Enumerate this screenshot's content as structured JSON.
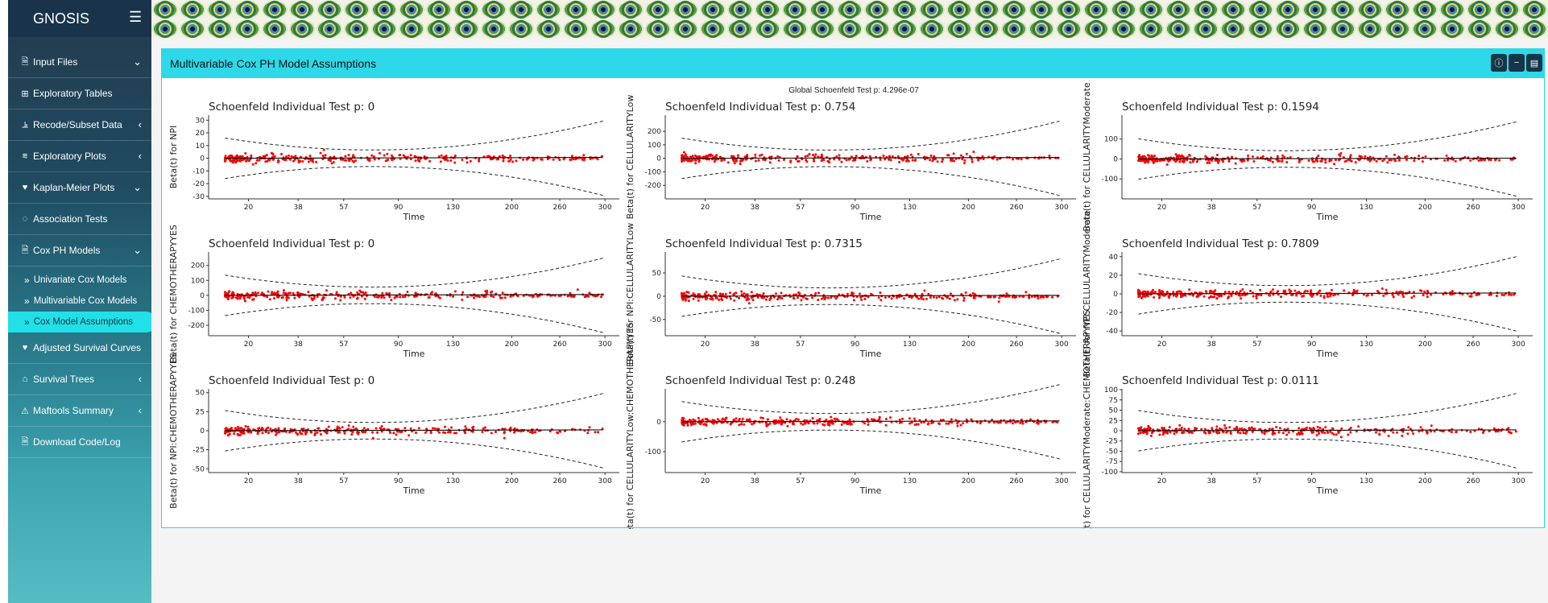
{
  "app": {
    "title": "GNOSIS",
    "menu_icon": "hamburger-icon"
  },
  "sidebar": {
    "items": [
      {
        "label": "Input Files",
        "icon": "file-icon",
        "arrow": "chevron-down"
      },
      {
        "label": "Exploratory Tables",
        "icon": "table-icon",
        "arrow": ""
      },
      {
        "label": "Recode/Subset Data",
        "icon": "recode-icon",
        "arrow": "chevron-left"
      },
      {
        "label": "Exploratory Plots",
        "icon": "chart-icon",
        "arrow": "chevron-left"
      },
      {
        "label": "Kaplan-Meier Plots",
        "icon": "heartbeat-icon",
        "arrow": "chevron-down"
      },
      {
        "label": "Association Tests",
        "icon": "association-icon",
        "arrow": ""
      },
      {
        "label": "Cox PH Models",
        "icon": "file-icon",
        "arrow": "chevron-down"
      },
      {
        "label": "Univariate Cox Models",
        "icon": "double-angle-icon",
        "sub": true
      },
      {
        "label": "Multivariable Cox Models",
        "icon": "double-angle-icon",
        "sub": true
      },
      {
        "label": "Cox Model Assumptions",
        "icon": "double-angle-icon",
        "sub": true,
        "active": true
      },
      {
        "label": "Adjusted Survival Curves",
        "icon": "heartbeat-icon",
        "arrow": ""
      },
      {
        "label": "Survival Trees",
        "icon": "tree-icon",
        "arrow": "chevron-left"
      },
      {
        "label": "Maftools Summary",
        "icon": "warning-icon",
        "arrow": "chevron-left"
      },
      {
        "label": "Download Code/Log",
        "icon": "file-icon",
        "arrow": ""
      }
    ]
  },
  "box": {
    "title": "Multivariable Cox PH Model Assumptions",
    "tools": [
      "info-icon",
      "collapse-icon",
      "maximize-icon"
    ]
  },
  "global_test": "Global Schoenfeld Test p: 4.296e-07",
  "chart_data": [
    {
      "type": "scatter",
      "title": "Schoenfeld Individual Test p: 0",
      "xlabel": "Time",
      "ylabel": "Beta(t) for NPI",
      "xticks": [
        "20",
        "38",
        "57",
        "90",
        "130",
        "200",
        "260",
        "300"
      ],
      "yticks": [
        30,
        20,
        10,
        0,
        -10,
        -20,
        -30
      ],
      "ylim": [
        -32,
        34
      ]
    },
    {
      "type": "scatter",
      "title": "Schoenfeld Individual Test p: 0.754",
      "xlabel": "Time",
      "ylabel": "Beta(t) for CELLULARITYLow",
      "xticks": [
        "20",
        "38",
        "57",
        "90",
        "130",
        "200",
        "260",
        "300"
      ],
      "yticks": [
        200,
        100,
        0,
        -100,
        -200
      ],
      "ylim": [
        -300,
        320
      ]
    },
    {
      "type": "scatter",
      "title": "Schoenfeld Individual Test p: 0.1594",
      "xlabel": "Time",
      "ylabel": "Beta(t) for CELLULARITYModerate",
      "xticks": [
        "20",
        "38",
        "57",
        "90",
        "130",
        "200",
        "260",
        "300"
      ],
      "yticks": [
        100,
        0,
        -100
      ],
      "ylim": [
        -200,
        220
      ]
    },
    {
      "type": "scatter",
      "title": "Schoenfeld Individual Test p: 0",
      "xlabel": "Time",
      "ylabel": "Beta(t) for CHEMOTHERAPYYES",
      "xticks": [
        "20",
        "38",
        "57",
        "90",
        "130",
        "200",
        "260",
        "300"
      ],
      "yticks": [
        200,
        100,
        0,
        -100,
        -200
      ],
      "ylim": [
        -270,
        290
      ]
    },
    {
      "type": "scatter",
      "title": "Schoenfeld Individual Test p: 0.7315",
      "xlabel": "Time",
      "ylabel": "Beta(t) for NPI:CELLULARITYLow",
      "xticks": [
        "20",
        "38",
        "57",
        "90",
        "130",
        "200",
        "260",
        "300"
      ],
      "yticks": [
        50,
        0,
        -50
      ],
      "ylim": [
        -85,
        95
      ]
    },
    {
      "type": "scatter",
      "title": "Schoenfeld Individual Test p: 0.7809",
      "xlabel": "Time",
      "ylabel": "Beta(t) for NPI:CELLULARITYModerate",
      "xticks": [
        "20",
        "38",
        "57",
        "90",
        "130",
        "200",
        "260",
        "300"
      ],
      "yticks": [
        40,
        20,
        0,
        -20,
        -40
      ],
      "ylim": [
        -45,
        45
      ]
    },
    {
      "type": "scatter",
      "title": "Schoenfeld Individual Test p: 0",
      "xlabel": "Time",
      "ylabel": "Beta(t) for NPI:CHEMOTHERAPYYES",
      "xticks": [
        "20",
        "38",
        "57",
        "90",
        "130",
        "200",
        "260",
        "300"
      ],
      "yticks": [
        50,
        25,
        0,
        -25,
        -50
      ],
      "ylim": [
        -55,
        55
      ]
    },
    {
      "type": "scatter",
      "title": "Schoenfeld Individual Test p: 0.248",
      "xlabel": "Time",
      "ylabel": "Beta(t) for CELLULARITYLow:CHEMOTHERAPYYES",
      "xticks": [
        "20",
        "38",
        "57",
        "90",
        "130",
        "200",
        "260",
        "300"
      ],
      "yticks": [
        0,
        -100
      ],
      "ylim": [
        -170,
        110
      ]
    },
    {
      "type": "scatter",
      "title": "Schoenfeld Individual Test p: 0.0111",
      "xlabel": "Time",
      "ylabel": "Beta(t) for CELLULARITYModerate:CHEMOTHERAPYYES",
      "xticks": [
        "20",
        "38",
        "57",
        "90",
        "130",
        "200",
        "260",
        "300"
      ],
      "yticks": [
        100,
        75,
        50,
        25,
        0,
        -25,
        -50,
        -75,
        -100
      ],
      "ylim": [
        -102,
        102
      ]
    }
  ]
}
